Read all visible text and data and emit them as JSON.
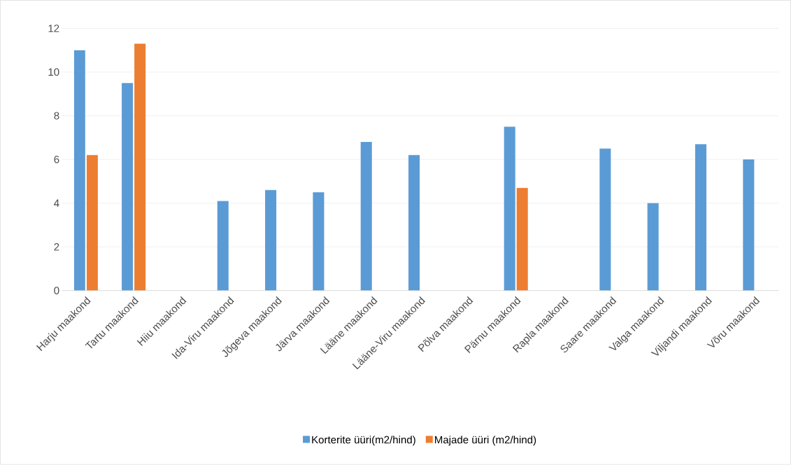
{
  "chart_data": {
    "type": "bar",
    "categories": [
      "Harju maakond",
      "Tartu maakond",
      "Hiiu maakond",
      "Ida-Viru maakond",
      "Jõgeva maakond",
      "Järva maakond",
      "Lääne maakond",
      "Lääne-Viru maakond",
      "Põlva maakond",
      "Pärnu maakond",
      "Rapla maakond",
      "Saare maakond",
      "Valga maakond",
      "Viljandi maakond",
      "Võru maakond"
    ],
    "series": [
      {
        "name": "Korterite üüri(m2/hind)",
        "color": "#5b9bd5",
        "values": [
          11.0,
          9.5,
          null,
          4.1,
          4.6,
          4.5,
          6.8,
          6.2,
          null,
          7.5,
          null,
          6.5,
          4.0,
          6.7,
          6.0
        ]
      },
      {
        "name": "Majade üüri (m2/hind)",
        "color": "#ed7d31",
        "values": [
          6.2,
          11.3,
          null,
          null,
          null,
          null,
          null,
          null,
          null,
          4.7,
          null,
          null,
          null,
          null,
          null
        ]
      }
    ],
    "ylim": [
      0,
      12
    ],
    "yticks": [
      0,
      2,
      4,
      6,
      8,
      10,
      12
    ],
    "grid": "y",
    "legend": "bottom"
  }
}
